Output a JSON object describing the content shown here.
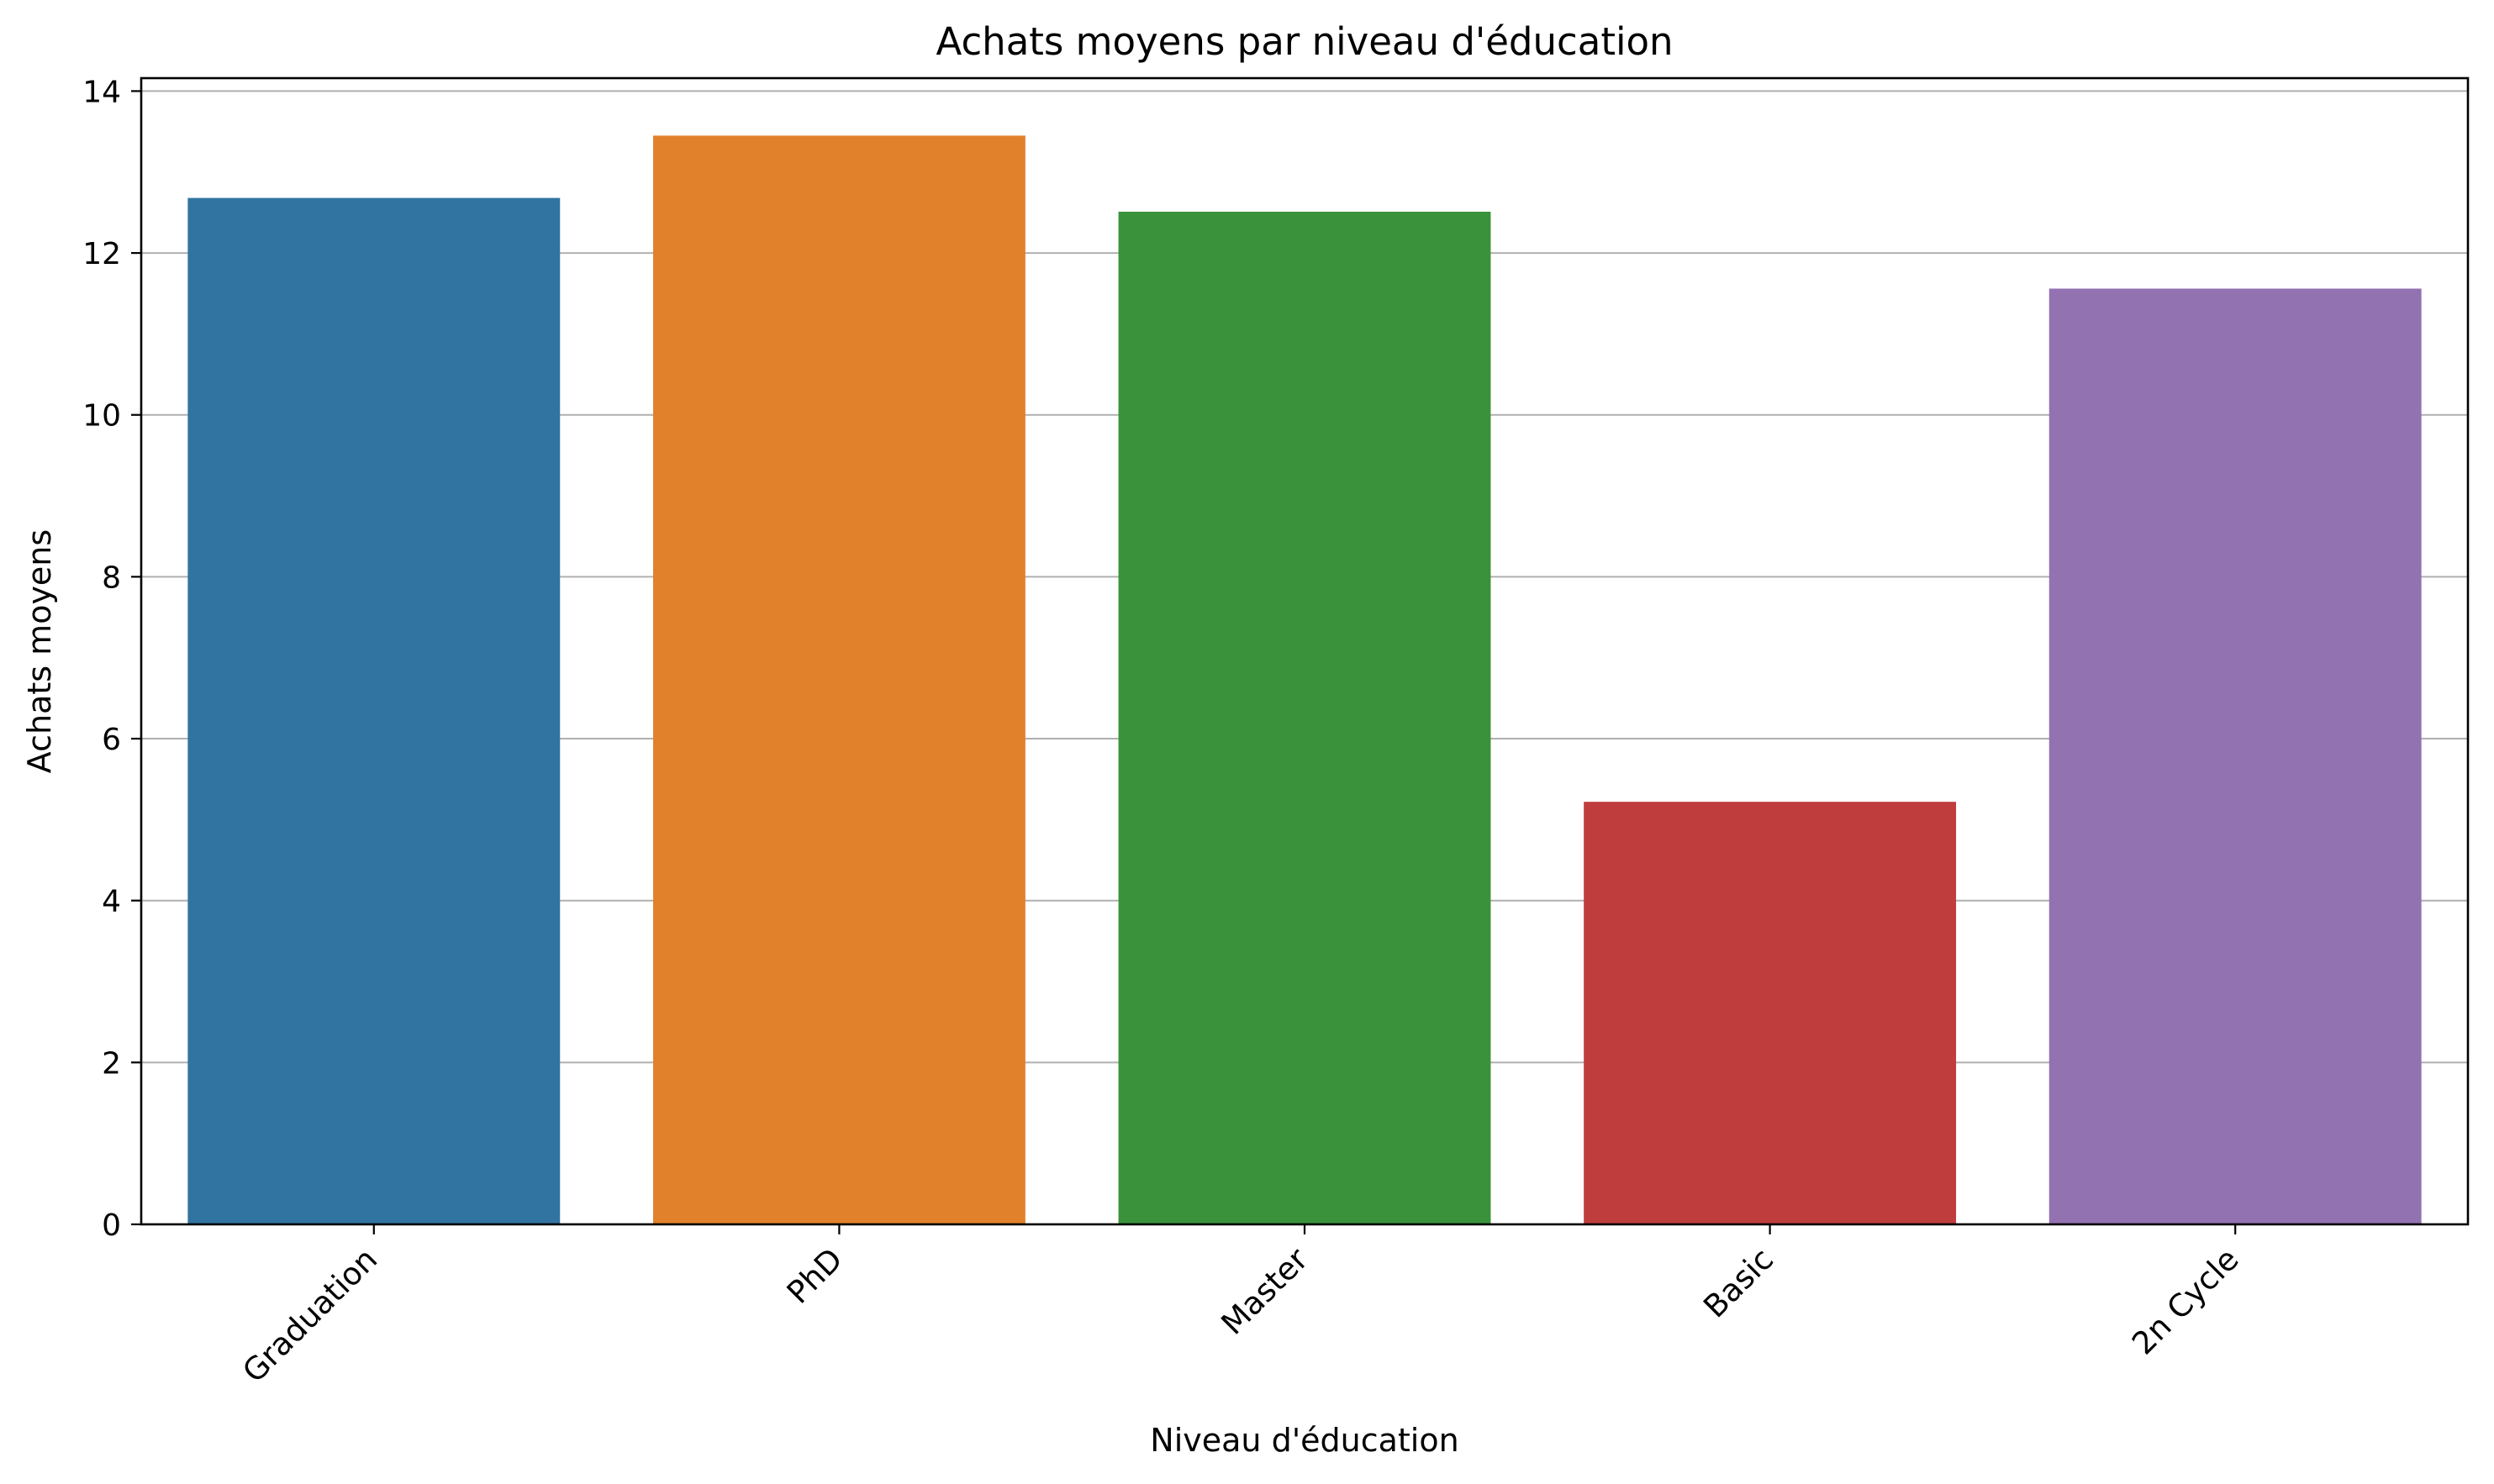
{
  "chart_data": {
    "type": "bar",
    "title": "Achats moyens par niveau d'éducation",
    "xlabel": "Niveau d'éducation",
    "ylabel": "Achats moyens",
    "categories": [
      "Graduation",
      "PhD",
      "Master",
      "Basic",
      "2n Cycle"
    ],
    "values": [
      12.68,
      13.45,
      12.51,
      5.22,
      11.56
    ],
    "colors": [
      "#3274a1",
      "#e1812c",
      "#3a923a",
      "#c03d3e",
      "#9372b2"
    ],
    "ylim": [
      0,
      14.16
    ],
    "yticks": [
      0,
      2,
      4,
      6,
      8,
      10,
      12,
      14
    ],
    "grid": "horizontal",
    "legend": "none",
    "x_tick_rotation": -45
  }
}
